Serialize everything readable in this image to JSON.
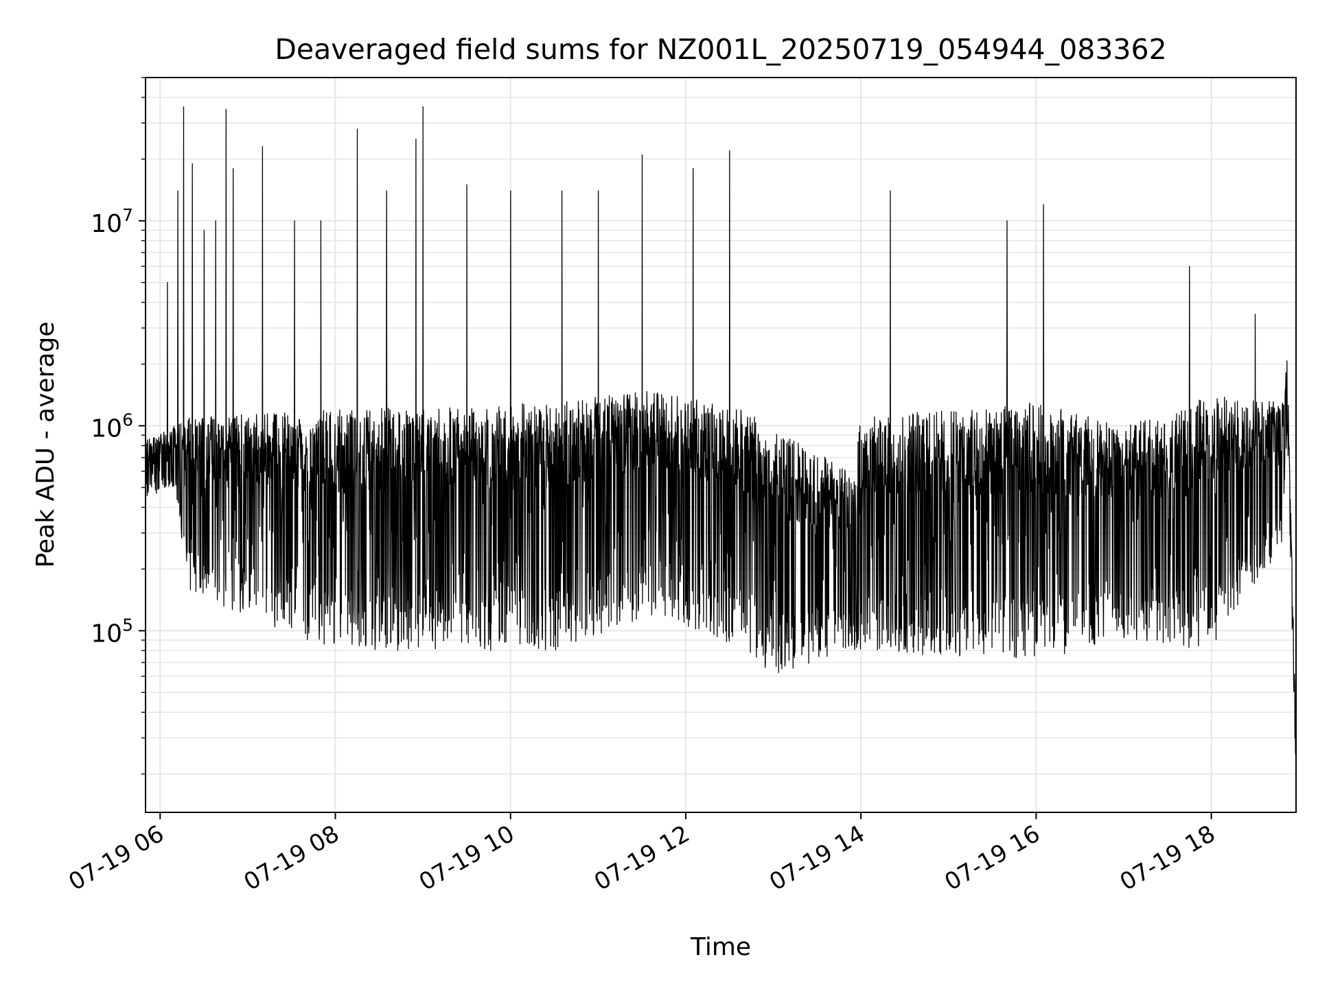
{
  "chart_data": {
    "type": "line",
    "title": "Deaveraged field sums for NZ001L_20250719_054944_083362",
    "xlabel": "Time",
    "ylabel": "Peak ADU - average",
    "yscale": "log",
    "grid": true,
    "grid_color": "#e6e6e6",
    "line_color": "#000000",
    "xlim": [
      "2025-07-19T05:50",
      "2025-07-19T18:58"
    ],
    "ylim": [
      13000,
      50000000
    ],
    "x_ticks": [
      {
        "t": "2025-07-19T06:00",
        "label": "07-19 06"
      },
      {
        "t": "2025-07-19T08:00",
        "label": "07-19 08"
      },
      {
        "t": "2025-07-19T10:00",
        "label": "07-19 10"
      },
      {
        "t": "2025-07-19T12:00",
        "label": "07-19 12"
      },
      {
        "t": "2025-07-19T14:00",
        "label": "07-19 14"
      },
      {
        "t": "2025-07-19T16:00",
        "label": "07-19 16"
      },
      {
        "t": "2025-07-19T18:00",
        "label": "07-19 18"
      }
    ],
    "y_ticks": [
      {
        "value": 100000,
        "base": "10",
        "exp": "5"
      },
      {
        "value": 1000000,
        "base": "10",
        "exp": "6"
      },
      {
        "value": 10000000,
        "base": "10",
        "exp": "7"
      }
    ],
    "series": [
      {
        "name": "",
        "x_range": [
          "2025-07-19T05:50",
          "2025-07-19T18:58"
        ],
        "envelope": [
          {
            "t": "2025-07-19T05:50",
            "high": 850000,
            "low": 450000
          },
          {
            "t": "2025-07-19T06:10",
            "high": 1000000,
            "low": 500000
          },
          {
            "t": "2025-07-19T06:20",
            "high": 1100000,
            "low": 150000
          },
          {
            "t": "2025-07-19T08:00",
            "high": 1200000,
            "low": 80000
          },
          {
            "t": "2025-07-19T10:30",
            "high": 1300000,
            "low": 80000
          },
          {
            "t": "2025-07-19T11:40",
            "high": 1500000,
            "low": 120000
          },
          {
            "t": "2025-07-19T12:40",
            "high": 1200000,
            "low": 80000
          },
          {
            "t": "2025-07-19T13:00",
            "high": 950000,
            "low": 60000
          },
          {
            "t": "2025-07-19T13:55",
            "high": 600000,
            "low": 80000
          },
          {
            "t": "2025-07-19T14:00",
            "high": 1100000,
            "low": 80000
          },
          {
            "t": "2025-07-19T16:00",
            "high": 1300000,
            "low": 70000
          },
          {
            "t": "2025-07-19T17:00",
            "high": 1000000,
            "low": 90000
          },
          {
            "t": "2025-07-19T18:00",
            "high": 1400000,
            "low": 80000
          },
          {
            "t": "2025-07-19T18:48",
            "high": 1300000,
            "low": 250000
          },
          {
            "t": "2025-07-19T18:52",
            "high": 2200000,
            "low": 1000000
          },
          {
            "t": "2025-07-19T18:58",
            "high": 30000,
            "low": 17000
          }
        ],
        "spikes": [
          {
            "t": "2025-07-19T06:05",
            "value": 5000000
          },
          {
            "t": "2025-07-19T06:12",
            "value": 14000000
          },
          {
            "t": "2025-07-19T06:16",
            "value": 36000000
          },
          {
            "t": "2025-07-19T06:22",
            "value": 19000000
          },
          {
            "t": "2025-07-19T06:30",
            "value": 9000000
          },
          {
            "t": "2025-07-19T06:38",
            "value": 10000000
          },
          {
            "t": "2025-07-19T06:45",
            "value": 35000000
          },
          {
            "t": "2025-07-19T06:50",
            "value": 18000000
          },
          {
            "t": "2025-07-19T07:10",
            "value": 23000000
          },
          {
            "t": "2025-07-19T07:32",
            "value": 10000000
          },
          {
            "t": "2025-07-19T07:50",
            "value": 10000000
          },
          {
            "t": "2025-07-19T08:15",
            "value": 28000000
          },
          {
            "t": "2025-07-19T08:35",
            "value": 14000000
          },
          {
            "t": "2025-07-19T08:55",
            "value": 25000000
          },
          {
            "t": "2025-07-19T09:00",
            "value": 36000000
          },
          {
            "t": "2025-07-19T09:30",
            "value": 15000000
          },
          {
            "t": "2025-07-19T10:00",
            "value": 14000000
          },
          {
            "t": "2025-07-19T10:35",
            "value": 14000000
          },
          {
            "t": "2025-07-19T11:00",
            "value": 14000000
          },
          {
            "t": "2025-07-19T11:30",
            "value": 21000000
          },
          {
            "t": "2025-07-19T12:05",
            "value": 18000000
          },
          {
            "t": "2025-07-19T12:30",
            "value": 22000000
          },
          {
            "t": "2025-07-19T14:20",
            "value": 14000000
          },
          {
            "t": "2025-07-19T15:40",
            "value": 10000000
          },
          {
            "t": "2025-07-19T16:05",
            "value": 12000000
          },
          {
            "t": "2025-07-19T17:45",
            "value": 6000000
          },
          {
            "t": "2025-07-19T18:30",
            "value": 3500000
          }
        ]
      }
    ]
  }
}
